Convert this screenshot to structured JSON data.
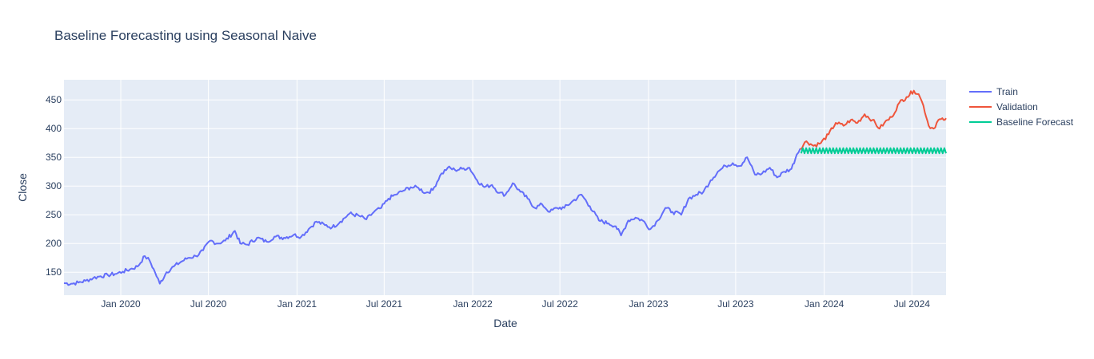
{
  "chart_data": {
    "type": "line",
    "title": "Baseline Forecasting using Seasonal Naive",
    "xlabel": "Date",
    "ylabel": "Close",
    "x_range": [
      "2019-09-05",
      "2024-09-10"
    ],
    "ylim": [
      110,
      485
    ],
    "grid": true,
    "legend_position": "top-right",
    "x_ticks": [
      {
        "date": "2020-01-01",
        "label": "Jan 2020"
      },
      {
        "date": "2020-07-01",
        "label": "Jul 2020"
      },
      {
        "date": "2021-01-01",
        "label": "Jan 2021"
      },
      {
        "date": "2021-07-01",
        "label": "Jul 2021"
      },
      {
        "date": "2022-01-01",
        "label": "Jan 2022"
      },
      {
        "date": "2022-07-01",
        "label": "Jul 2022"
      },
      {
        "date": "2023-01-01",
        "label": "Jan 2023"
      },
      {
        "date": "2023-07-01",
        "label": "Jul 2023"
      },
      {
        "date": "2024-01-01",
        "label": "Jan 2024"
      },
      {
        "date": "2024-07-01",
        "label": "Jul 2024"
      }
    ],
    "y_ticks": [
      150,
      200,
      250,
      300,
      350,
      400,
      450
    ],
    "series": [
      {
        "name": "Train",
        "color": "#636efa",
        "points": [
          [
            "2019-09-05",
            131
          ],
          [
            "2019-09-20",
            130
          ],
          [
            "2019-10-05",
            132
          ],
          [
            "2019-10-20",
            135
          ],
          [
            "2019-11-05",
            140
          ],
          [
            "2019-11-20",
            143
          ],
          [
            "2019-12-05",
            145
          ],
          [
            "2019-12-20",
            147
          ],
          [
            "2020-01-05",
            151
          ],
          [
            "2020-01-20",
            155
          ],
          [
            "2020-02-05",
            160
          ],
          [
            "2020-02-20",
            178
          ],
          [
            "2020-03-01",
            170
          ],
          [
            "2020-03-12",
            150
          ],
          [
            "2020-03-22",
            130
          ],
          [
            "2020-04-05",
            150
          ],
          [
            "2020-04-20",
            160
          ],
          [
            "2020-05-05",
            168
          ],
          [
            "2020-05-20",
            175
          ],
          [
            "2020-06-05",
            178
          ],
          [
            "2020-06-20",
            188
          ],
          [
            "2020-07-05",
            205
          ],
          [
            "2020-07-20",
            200
          ],
          [
            "2020-08-05",
            205
          ],
          [
            "2020-08-25",
            222
          ],
          [
            "2020-09-05",
            200
          ],
          [
            "2020-09-20",
            198
          ],
          [
            "2020-10-10",
            210
          ],
          [
            "2020-10-30",
            203
          ],
          [
            "2020-11-15",
            212
          ],
          [
            "2020-12-05",
            210
          ],
          [
            "2020-12-25",
            215
          ],
          [
            "2021-01-10",
            212
          ],
          [
            "2021-01-25",
            225
          ],
          [
            "2021-02-10",
            238
          ],
          [
            "2021-02-28",
            232
          ],
          [
            "2021-03-15",
            228
          ],
          [
            "2021-04-01",
            238
          ],
          [
            "2021-04-20",
            252
          ],
          [
            "2021-05-10",
            248
          ],
          [
            "2021-05-25",
            242
          ],
          [
            "2021-06-10",
            255
          ],
          [
            "2021-06-25",
            262
          ],
          [
            "2021-07-10",
            278
          ],
          [
            "2021-07-25",
            285
          ],
          [
            "2021-08-10",
            292
          ],
          [
            "2021-08-25",
            298
          ],
          [
            "2021-09-10",
            297
          ],
          [
            "2021-09-25",
            288
          ],
          [
            "2021-10-10",
            293
          ],
          [
            "2021-10-25",
            318
          ],
          [
            "2021-11-10",
            332
          ],
          [
            "2021-11-25",
            328
          ],
          [
            "2021-12-10",
            330
          ],
          [
            "2021-12-25",
            332
          ],
          [
            "2022-01-10",
            310
          ],
          [
            "2022-01-25",
            298
          ],
          [
            "2022-02-10",
            302
          ],
          [
            "2022-02-25",
            288
          ],
          [
            "2022-03-10",
            285
          ],
          [
            "2022-03-25",
            305
          ],
          [
            "2022-04-10",
            290
          ],
          [
            "2022-04-25",
            278
          ],
          [
            "2022-05-10",
            262
          ],
          [
            "2022-05-25",
            268
          ],
          [
            "2022-06-10",
            255
          ],
          [
            "2022-06-25",
            262
          ],
          [
            "2022-07-10",
            262
          ],
          [
            "2022-07-25",
            272
          ],
          [
            "2022-08-15",
            285
          ],
          [
            "2022-09-01",
            265
          ],
          [
            "2022-09-20",
            240
          ],
          [
            "2022-10-10",
            235
          ],
          [
            "2022-10-25",
            230
          ],
          [
            "2022-11-05",
            214
          ],
          [
            "2022-11-20",
            240
          ],
          [
            "2022-12-05",
            245
          ],
          [
            "2022-12-20",
            240
          ],
          [
            "2023-01-05",
            225
          ],
          [
            "2023-01-20",
            240
          ],
          [
            "2023-02-05",
            262
          ],
          [
            "2023-02-20",
            255
          ],
          [
            "2023-03-10",
            250
          ],
          [
            "2023-03-25",
            278
          ],
          [
            "2023-04-10",
            285
          ],
          [
            "2023-04-25",
            290
          ],
          [
            "2023-05-10",
            310
          ],
          [
            "2023-05-25",
            325
          ],
          [
            "2023-06-10",
            335
          ],
          [
            "2023-06-25",
            340
          ],
          [
            "2023-07-10",
            335
          ],
          [
            "2023-07-25",
            350
          ],
          [
            "2023-08-10",
            320
          ],
          [
            "2023-08-25",
            322
          ],
          [
            "2023-09-10",
            332
          ],
          [
            "2023-09-25",
            315
          ],
          [
            "2023-10-10",
            325
          ],
          [
            "2023-10-25",
            330
          ],
          [
            "2023-11-05",
            355
          ],
          [
            "2023-11-12",
            365
          ]
        ]
      },
      {
        "name": "Validation",
        "color": "#ef553b",
        "points": [
          [
            "2023-11-12",
            365
          ],
          [
            "2023-11-25",
            378
          ],
          [
            "2023-12-10",
            370
          ],
          [
            "2023-12-25",
            375
          ],
          [
            "2024-01-10",
            390
          ],
          [
            "2024-01-25",
            410
          ],
          [
            "2024-02-10",
            405
          ],
          [
            "2024-02-25",
            415
          ],
          [
            "2024-03-10",
            410
          ],
          [
            "2024-03-25",
            425
          ],
          [
            "2024-04-10",
            415
          ],
          [
            "2024-04-25",
            400
          ],
          [
            "2024-05-05",
            410
          ],
          [
            "2024-05-20",
            420
          ],
          [
            "2024-06-05",
            445
          ],
          [
            "2024-06-20",
            455
          ],
          [
            "2024-07-05",
            466
          ],
          [
            "2024-07-15",
            460
          ],
          [
            "2024-07-25",
            440
          ],
          [
            "2024-08-05",
            405
          ],
          [
            "2024-08-15",
            400
          ],
          [
            "2024-08-25",
            415
          ],
          [
            "2024-09-05",
            415
          ],
          [
            "2024-09-10",
            418
          ]
        ]
      },
      {
        "name": "Baseline Forecast",
        "color": "#00cc96",
        "start": "2023-11-14",
        "end": "2024-09-10",
        "period_days": 7,
        "low": 357,
        "high": 366
      }
    ]
  }
}
